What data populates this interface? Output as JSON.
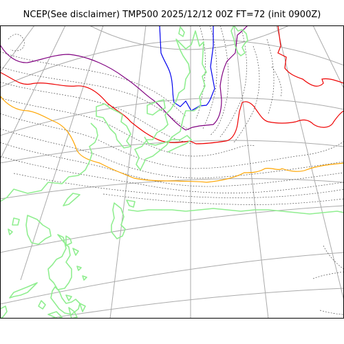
{
  "title": "NCEP(See disclaimer) TMP500 2025/12/12 00Z FT=72 (init 0900Z)",
  "colors": {
    "background": "#ffffff",
    "frame": "#000000",
    "graticule": "#aaaaaa",
    "coastline": "#90ee90",
    "isotherm_dashed": "#555555",
    "isotherm_blue": "#0000ee",
    "isotherm_purple": "#800080",
    "isotherm_red": "#ee0000",
    "isotherm_orange": "#ffa500"
  },
  "layers": [
    {
      "id": "graticule",
      "style": "solid gray lines",
      "color_key": "graticule"
    },
    {
      "id": "dotted-isotherms",
      "style": "thin dotted lines",
      "color_key": "isotherm_dashed"
    },
    {
      "id": "blue-isotherm",
      "color_key": "isotherm_blue"
    },
    {
      "id": "purple-isotherm",
      "color_key": "isotherm_purple"
    },
    {
      "id": "red-isotherm",
      "color_key": "isotherm_red"
    },
    {
      "id": "orange-isotherm",
      "color_key": "isotherm_orange"
    },
    {
      "id": "coastlines",
      "color_key": "coastline"
    }
  ]
}
